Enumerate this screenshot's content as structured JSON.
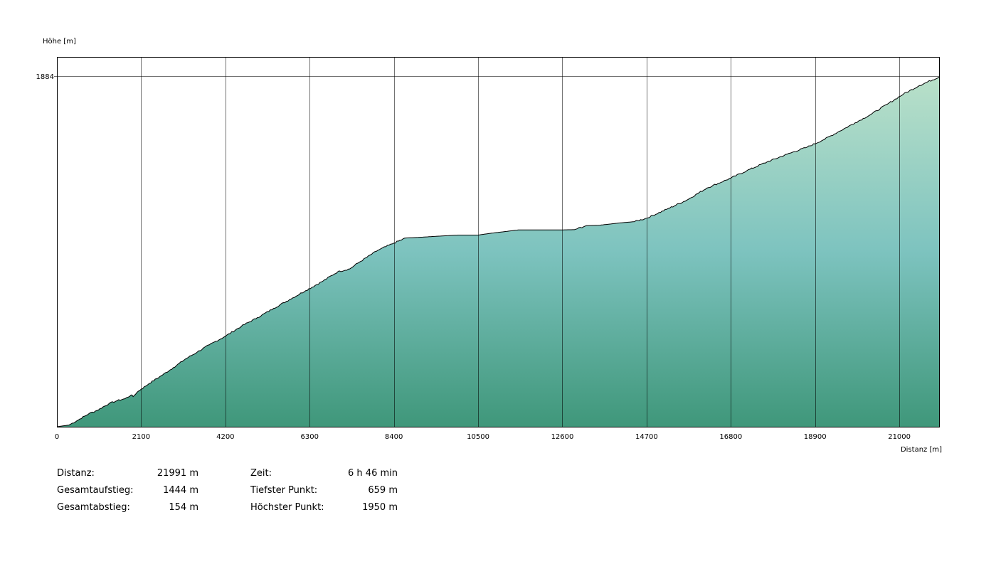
{
  "chart_data": {
    "type": "area",
    "title": "",
    "ylabel": "Höhe [m]",
    "xlabel": "Distanz [m]",
    "xlim": [
      0,
      21991
    ],
    "ylim": [
      659,
      1950
    ],
    "x_ticks": [
      0,
      2100,
      4200,
      6300,
      8400,
      10500,
      12600,
      14700,
      16800,
      18900,
      21000
    ],
    "y_ticks": [
      1884
    ],
    "grid": true,
    "legend": "none",
    "fill_gradient": [
      "#b9e0c9",
      "#7dc3bf",
      "#3f977a"
    ],
    "line_color": "#000000",
    "series": [
      {
        "x": [
          0,
          300,
          500,
          800,
          1000,
          1300,
          1500,
          1700,
          1850,
          1900,
          2000,
          2100,
          2300,
          2600,
          2900,
          3200,
          3500,
          3800,
          4200,
          4600,
          5000,
          5400,
          5800,
          6200,
          6600,
          7000,
          7300,
          7500,
          8000,
          8400,
          8700,
          9000,
          9600,
          10000,
          10500,
          10800,
          11500,
          12000,
          12500,
          12900,
          13200,
          13500,
          14000,
          14400,
          14700,
          15200,
          15700,
          16200,
          16800,
          17200,
          17700,
          18200,
          18700,
          19100,
          19500,
          19900,
          20300,
          20700,
          21100,
          21500,
          21991
        ],
        "y": [
          659,
          665,
          680,
          705,
          716,
          740,
          750,
          757,
          770,
          764,
          780,
          790,
          810,
          837,
          865,
          895,
          920,
          945,
          975,
          1010,
          1040,
          1072,
          1103,
          1134,
          1165,
          1200,
          1210,
          1230,
          1275,
          1300,
          1318,
          1320,
          1325,
          1328,
          1328,
          1334,
          1346,
          1346,
          1346,
          1347,
          1361,
          1362,
          1370,
          1375,
          1387,
          1418,
          1450,
          1492,
          1527,
          1553,
          1583,
          1610,
          1635,
          1660,
          1690,
          1720,
          1750,
          1785,
          1820,
          1850,
          1880
        ]
      }
    ]
  },
  "stats": [
    {
      "label": "Distanz:",
      "value": "21991 m"
    },
    {
      "label": "Gesamtaufstieg:",
      "value": "1444 m"
    },
    {
      "label": "Gesamtabstieg:",
      "value": "154 m"
    },
    {
      "label": "Zeit:",
      "value": "6 h 46 min"
    },
    {
      "label": "Tiefster Punkt:",
      "value": "659 m"
    },
    {
      "label": "Höchster Punkt:",
      "value": "1950 m"
    }
  ]
}
